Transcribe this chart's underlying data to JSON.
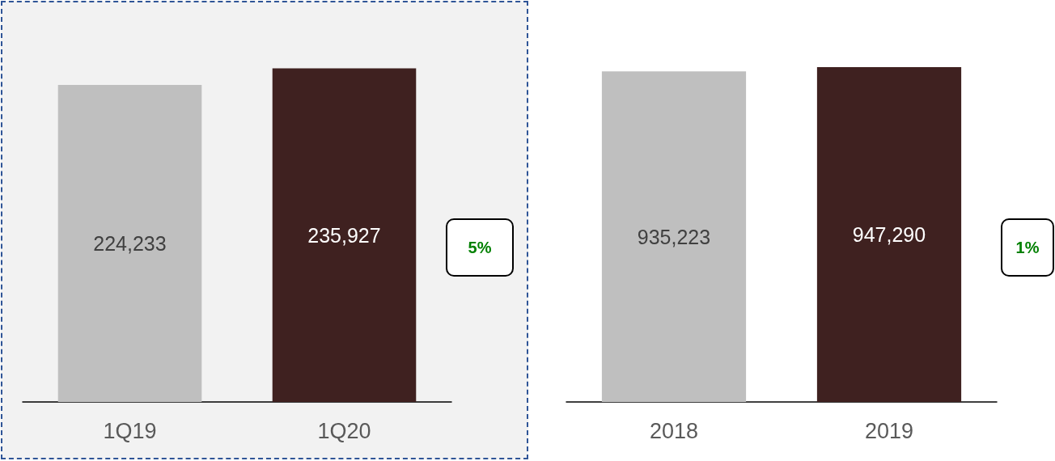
{
  "chart_data": [
    {
      "type": "bar",
      "categories": [
        "1Q19",
        "1Q20"
      ],
      "values": [
        224233,
        235927
      ],
      "colors": [
        "#bfbfbf",
        "#3f2120"
      ],
      "value_labels": [
        "224,233",
        "235,927"
      ],
      "annotations": [
        "5%"
      ]
    },
    {
      "type": "bar",
      "categories": [
        "2018",
        "2019"
      ],
      "values": [
        935223,
        947290
      ],
      "colors": [
        "#bfbfbf",
        "#3f2120"
      ],
      "value_labels": [
        "935,223",
        "947,290"
      ],
      "annotations": [
        "1%"
      ]
    }
  ]
}
